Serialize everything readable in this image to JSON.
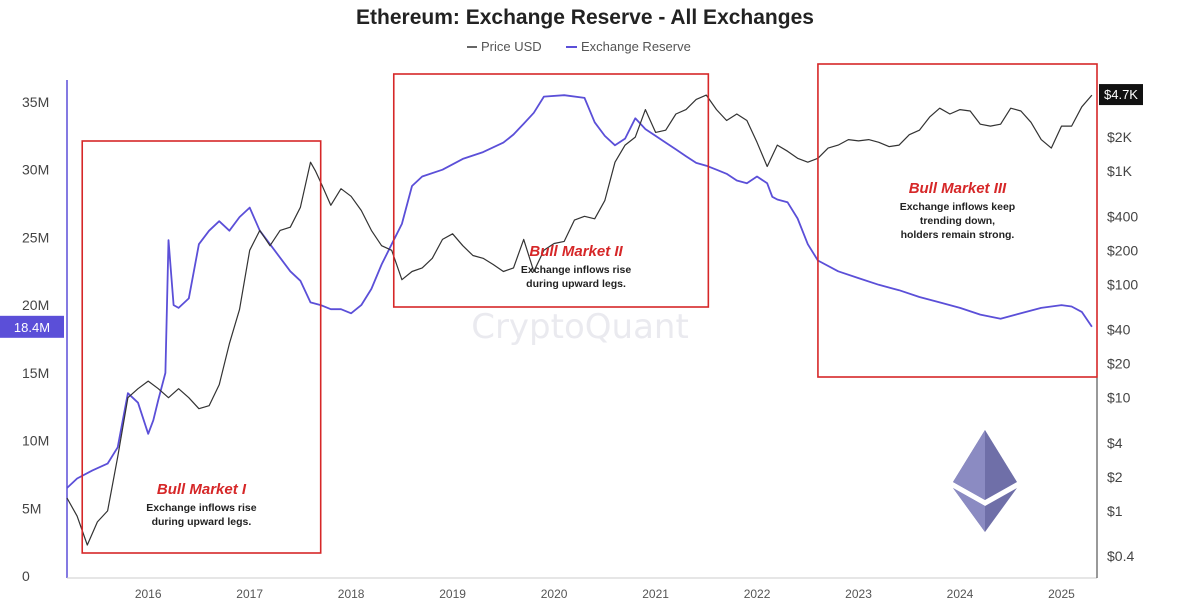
{
  "chart_data": {
    "type": "line",
    "title": "Ethereum: Exchange Reserve - All Exchanges",
    "watermark": "CryptoQuant",
    "legend": [
      {
        "label": "Price USD",
        "color": "#333333"
      },
      {
        "label": "Exchange Reserve",
        "color": "#5b4fd8"
      }
    ],
    "x_ticks": [
      "2016",
      "2017",
      "2018",
      "2019",
      "2020",
      "2021",
      "2022",
      "2023",
      "2024",
      "2025"
    ],
    "x_range": [
      2015.6,
      2025.75
    ],
    "left_axis": {
      "ticks": [
        "0",
        "5M",
        "10M",
        "15M",
        "20M",
        "25M",
        "30M",
        "35M"
      ],
      "range": [
        0,
        37000000
      ],
      "current_label": "18.4M",
      "current_value": 18400000,
      "current_color": "#5b4fd8"
    },
    "right_axis": {
      "scale": "log",
      "ticks": [
        {
          "label": "$0.4",
          "value": 0.4
        },
        {
          "label": "$1",
          "value": 1
        },
        {
          "label": "$2",
          "value": 2
        },
        {
          "label": "$4",
          "value": 4
        },
        {
          "label": "$10",
          "value": 10
        },
        {
          "label": "$20",
          "value": 20
        },
        {
          "label": "$40",
          "value": 40
        },
        {
          "label": "$100",
          "value": 100
        },
        {
          "label": "$200",
          "value": 200
        },
        {
          "label": "$400",
          "value": 400
        },
        {
          "label": "$1K",
          "value": 1000
        },
        {
          "label": "$2K",
          "value": 2000
        },
        {
          "label": "$4K",
          "value": 4000
        }
      ],
      "current_label": "$4.7K",
      "current_value": 4700
    },
    "series": [
      {
        "name": "Exchange Reserve",
        "axis": "left",
        "color": "#5b4fd8",
        "points": [
          [
            2015.6,
            6500000
          ],
          [
            2015.7,
            7200000
          ],
          [
            2015.85,
            7800000
          ],
          [
            2016.0,
            8300000
          ],
          [
            2016.1,
            9500000
          ],
          [
            2016.2,
            13500000
          ],
          [
            2016.3,
            12800000
          ],
          [
            2016.4,
            10500000
          ],
          [
            2016.45,
            11500000
          ],
          [
            2016.5,
            13000000
          ],
          [
            2016.57,
            15000000
          ],
          [
            2016.6,
            24800000
          ],
          [
            2016.65,
            20000000
          ],
          [
            2016.7,
            19800000
          ],
          [
            2016.8,
            20500000
          ],
          [
            2016.9,
            24500000
          ],
          [
            2017.0,
            25500000
          ],
          [
            2017.1,
            26200000
          ],
          [
            2017.2,
            25500000
          ],
          [
            2017.3,
            26500000
          ],
          [
            2017.4,
            27200000
          ],
          [
            2017.5,
            25500000
          ],
          [
            2017.6,
            24500000
          ],
          [
            2017.7,
            23500000
          ],
          [
            2017.8,
            22500000
          ],
          [
            2017.9,
            21800000
          ],
          [
            2018.0,
            20200000
          ],
          [
            2018.1,
            20000000
          ],
          [
            2018.2,
            19700000
          ],
          [
            2018.3,
            19700000
          ],
          [
            2018.4,
            19400000
          ],
          [
            2018.5,
            20000000
          ],
          [
            2018.6,
            21200000
          ],
          [
            2018.7,
            23000000
          ],
          [
            2018.8,
            24500000
          ],
          [
            2018.9,
            26000000
          ],
          [
            2019.0,
            28800000
          ],
          [
            2019.1,
            29500000
          ],
          [
            2019.3,
            30000000
          ],
          [
            2019.5,
            30800000
          ],
          [
            2019.7,
            31300000
          ],
          [
            2019.9,
            32000000
          ],
          [
            2020.0,
            32600000
          ],
          [
            2020.1,
            33400000
          ],
          [
            2020.2,
            34200000
          ],
          [
            2020.3,
            35400000
          ],
          [
            2020.5,
            35500000
          ],
          [
            2020.7,
            35300000
          ],
          [
            2020.8,
            33500000
          ],
          [
            2020.9,
            32500000
          ],
          [
            2021.0,
            31800000
          ],
          [
            2021.1,
            32300000
          ],
          [
            2021.2,
            33800000
          ],
          [
            2021.3,
            33000000
          ],
          [
            2021.4,
            32500000
          ],
          [
            2021.5,
            32000000
          ],
          [
            2021.6,
            31500000
          ],
          [
            2021.7,
            31000000
          ],
          [
            2021.8,
            30500000
          ],
          [
            2021.9,
            30300000
          ],
          [
            2022.0,
            30000000
          ],
          [
            2022.1,
            29700000
          ],
          [
            2022.2,
            29200000
          ],
          [
            2022.3,
            29000000
          ],
          [
            2022.4,
            29500000
          ],
          [
            2022.5,
            29000000
          ],
          [
            2022.55,
            28000000
          ],
          [
            2022.6,
            27800000
          ],
          [
            2022.7,
            27600000
          ],
          [
            2022.8,
            26400000
          ],
          [
            2022.9,
            24500000
          ],
          [
            2023.0,
            23300000
          ],
          [
            2023.2,
            22500000
          ],
          [
            2023.4,
            22000000
          ],
          [
            2023.6,
            21500000
          ],
          [
            2023.8,
            21100000
          ],
          [
            2024.0,
            20600000
          ],
          [
            2024.2,
            20200000
          ],
          [
            2024.4,
            19800000
          ],
          [
            2024.6,
            19300000
          ],
          [
            2024.8,
            19000000
          ],
          [
            2025.0,
            19400000
          ],
          [
            2025.2,
            19800000
          ],
          [
            2025.4,
            20000000
          ],
          [
            2025.5,
            19900000
          ],
          [
            2025.6,
            19500000
          ],
          [
            2025.7,
            18400000
          ]
        ]
      },
      {
        "name": "Price USD",
        "axis": "right",
        "color": "#333333",
        "points": [
          [
            2015.6,
            1.3
          ],
          [
            2015.7,
            0.9
          ],
          [
            2015.8,
            0.5
          ],
          [
            2015.9,
            0.8
          ],
          [
            2016.0,
            1.0
          ],
          [
            2016.1,
            3.0
          ],
          [
            2016.2,
            10.0
          ],
          [
            2016.3,
            12.0
          ],
          [
            2016.4,
            14.0
          ],
          [
            2016.5,
            12.0
          ],
          [
            2016.6,
            10.0
          ],
          [
            2016.7,
            12.0
          ],
          [
            2016.8,
            10.0
          ],
          [
            2016.9,
            8.0
          ],
          [
            2017.0,
            8.5
          ],
          [
            2017.1,
            13.0
          ],
          [
            2017.2,
            30.0
          ],
          [
            2017.3,
            60.0
          ],
          [
            2017.4,
            200.0
          ],
          [
            2017.5,
            300.0
          ],
          [
            2017.6,
            220.0
          ],
          [
            2017.7,
            300.0
          ],
          [
            2017.8,
            320.0
          ],
          [
            2017.9,
            480.0
          ],
          [
            2018.0,
            1200.0
          ],
          [
            2018.05,
            1000.0
          ],
          [
            2018.1,
            800.0
          ],
          [
            2018.2,
            500.0
          ],
          [
            2018.3,
            700.0
          ],
          [
            2018.4,
            600.0
          ],
          [
            2018.5,
            450.0
          ],
          [
            2018.6,
            300.0
          ],
          [
            2018.7,
            220.0
          ],
          [
            2018.8,
            200.0
          ],
          [
            2018.9,
            110.0
          ],
          [
            2019.0,
            130.0
          ],
          [
            2019.1,
            140.0
          ],
          [
            2019.2,
            170.0
          ],
          [
            2019.3,
            250.0
          ],
          [
            2019.4,
            280.0
          ],
          [
            2019.5,
            220.0
          ],
          [
            2019.6,
            180.0
          ],
          [
            2019.7,
            170.0
          ],
          [
            2019.8,
            150.0
          ],
          [
            2019.9,
            130.0
          ],
          [
            2020.0,
            140.0
          ],
          [
            2020.1,
            250.0
          ],
          [
            2020.2,
            130.0
          ],
          [
            2020.3,
            200.0
          ],
          [
            2020.4,
            230.0
          ],
          [
            2020.5,
            240.0
          ],
          [
            2020.6,
            370.0
          ],
          [
            2020.7,
            400.0
          ],
          [
            2020.8,
            380.0
          ],
          [
            2020.9,
            550.0
          ],
          [
            2021.0,
            1200.0
          ],
          [
            2021.1,
            1700.0
          ],
          [
            2021.2,
            2000.0
          ],
          [
            2021.3,
            3500.0
          ],
          [
            2021.4,
            2200.0
          ],
          [
            2021.5,
            2300.0
          ],
          [
            2021.6,
            3200.0
          ],
          [
            2021.7,
            3500.0
          ],
          [
            2021.8,
            4300.0
          ],
          [
            2021.9,
            4700.0
          ],
          [
            2022.0,
            3500.0
          ],
          [
            2022.1,
            2800.0
          ],
          [
            2022.2,
            3200.0
          ],
          [
            2022.3,
            2800.0
          ],
          [
            2022.4,
            1800.0
          ],
          [
            2022.5,
            1100.0
          ],
          [
            2022.6,
            1700.0
          ],
          [
            2022.7,
            1500.0
          ],
          [
            2022.8,
            1300.0
          ],
          [
            2022.9,
            1200.0
          ],
          [
            2023.0,
            1300.0
          ],
          [
            2023.1,
            1600.0
          ],
          [
            2023.2,
            1700.0
          ],
          [
            2023.3,
            1900.0
          ],
          [
            2023.4,
            1850.0
          ],
          [
            2023.5,
            1900.0
          ],
          [
            2023.6,
            1800.0
          ],
          [
            2023.7,
            1650.0
          ],
          [
            2023.8,
            1700.0
          ],
          [
            2023.9,
            2100.0
          ],
          [
            2024.0,
            2300.0
          ],
          [
            2024.1,
            3000.0
          ],
          [
            2024.2,
            3600.0
          ],
          [
            2024.3,
            3200.0
          ],
          [
            2024.4,
            3500.0
          ],
          [
            2024.5,
            3400.0
          ],
          [
            2024.6,
            2600.0
          ],
          [
            2024.7,
            2500.0
          ],
          [
            2024.8,
            2600.0
          ],
          [
            2024.9,
            3600.0
          ],
          [
            2025.0,
            3400.0
          ],
          [
            2025.1,
            2700.0
          ],
          [
            2025.2,
            1900.0
          ],
          [
            2025.3,
            1600.0
          ],
          [
            2025.4,
            2500.0
          ],
          [
            2025.5,
            2500.0
          ],
          [
            2025.6,
            3700.0
          ],
          [
            2025.7,
            4700.0
          ]
        ]
      }
    ],
    "annotations": [
      {
        "title": "Bull Market I",
        "lines": [
          "Exchange inflows rise",
          "during upward legs."
        ],
        "x_range": [
          2015.75,
          2018.1
        ],
        "box_color": "#d62728"
      },
      {
        "title": "Bull Market II",
        "lines": [
          "Exchange inflows rise",
          "during upward legs."
        ],
        "x_range": [
          2018.82,
          2021.92
        ],
        "box_color": "#d62728"
      },
      {
        "title": "Bull Market III",
        "lines": [
          "Exchange inflows keep",
          "trending down,",
          "holders remain strong."
        ],
        "x_range": [
          2023.0,
          2025.75
        ],
        "box_color": "#d62728"
      }
    ],
    "grid": false,
    "legend_position": "top-center"
  }
}
